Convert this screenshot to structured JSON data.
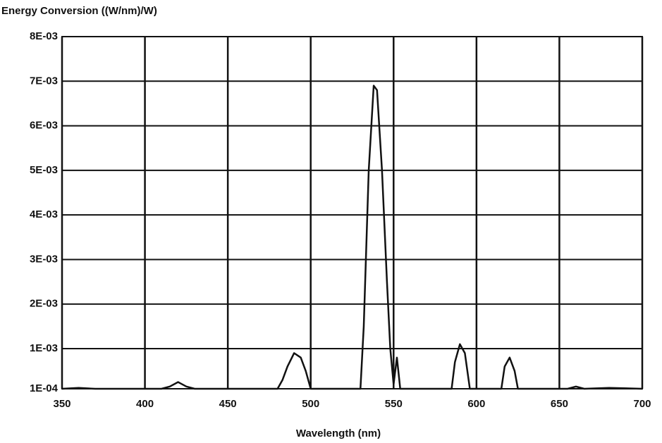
{
  "chart_data": {
    "type": "line",
    "y_axis_label": "Energy Conversion ((W/nm)/W)",
    "x_axis_label": "Wavelength (nm)",
    "x": [
      350,
      360,
      370,
      410,
      415,
      420,
      425,
      430,
      440,
      450,
      480,
      483,
      486,
      490,
      494,
      497,
      500,
      530,
      532,
      535,
      538,
      540,
      543,
      546,
      548,
      550,
      552,
      554,
      585,
      587,
      590,
      593,
      596,
      615,
      617,
      620,
      623,
      625,
      655,
      660,
      665,
      680,
      700
    ],
    "series": [
      {
        "color": "#111111",
        "values": [
          0.0001,
          0.00012,
          0.0001,
          0.0001,
          0.00015,
          0.00025,
          0.00015,
          0.0001,
          0.0001,
          0.0001,
          0.0001,
          0.0003,
          0.0006,
          0.0009,
          0.0008,
          0.0005,
          0.0001,
          0.0001,
          0.0015,
          0.005,
          0.0069,
          0.0068,
          0.005,
          0.0025,
          0.001,
          0.0002,
          0.0008,
          0.0001,
          0.0001,
          0.0007,
          0.0011,
          0.0009,
          0.0001,
          0.0001,
          0.0006,
          0.0008,
          0.0005,
          0.0001,
          0.0001,
          0.00015,
          0.0001,
          0.00012,
          0.0001
        ]
      }
    ],
    "xlim": [
      350,
      700
    ],
    "xticks": [
      350,
      400,
      450,
      500,
      550,
      600,
      650,
      700
    ],
    "ylim": [
      0.0001,
      0.008
    ],
    "yticks": [
      {
        "value": 0.0001,
        "label": "1E-04"
      },
      {
        "value": 0.001,
        "label": "1E-03"
      },
      {
        "value": 0.002,
        "label": "2E-03"
      },
      {
        "value": 0.003,
        "label": "3E-03"
      },
      {
        "value": 0.004,
        "label": "4E-03"
      },
      {
        "value": 0.005,
        "label": "5E-03"
      },
      {
        "value": 0.006,
        "label": "6E-03"
      },
      {
        "value": 0.007,
        "label": "7E-03"
      },
      {
        "value": 0.008,
        "label": "8E-03"
      }
    ],
    "grid": true
  }
}
